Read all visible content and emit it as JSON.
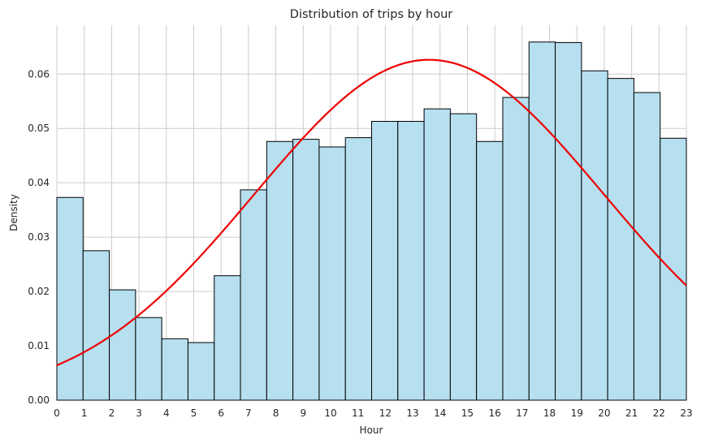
{
  "chart_data": {
    "type": "bar",
    "title": "Distribution of trips by hour",
    "xlabel": "Hour",
    "ylabel": "Density",
    "xlim": [
      0,
      23
    ],
    "ylim": [
      0,
      0.069
    ],
    "grid": true,
    "x_ticks": [
      "0",
      "1",
      "2",
      "3",
      "4",
      "5",
      "6",
      "7",
      "8",
      "9",
      "10",
      "11",
      "12",
      "13",
      "14",
      "15",
      "16",
      "17",
      "18",
      "19",
      "20",
      "21",
      "22",
      "23"
    ],
    "y_ticks": [
      "0.00",
      "0.01",
      "0.02",
      "0.03",
      "0.04",
      "0.05",
      "0.06"
    ],
    "bins": [
      {
        "start": 0.0,
        "end": 0.958,
        "value": 0.0373
      },
      {
        "start": 0.958,
        "end": 1.917,
        "value": 0.0275
      },
      {
        "start": 1.917,
        "end": 2.875,
        "value": 0.0203
      },
      {
        "start": 2.875,
        "end": 3.833,
        "value": 0.0152
      },
      {
        "start": 3.833,
        "end": 4.792,
        "value": 0.0113
      },
      {
        "start": 4.792,
        "end": 5.75,
        "value": 0.0106
      },
      {
        "start": 5.75,
        "end": 6.708,
        "value": 0.0229
      },
      {
        "start": 6.708,
        "end": 7.667,
        "value": 0.0387
      },
      {
        "start": 7.667,
        "end": 8.625,
        "value": 0.0476
      },
      {
        "start": 8.625,
        "end": 9.583,
        "value": 0.048
      },
      {
        "start": 9.583,
        "end": 10.542,
        "value": 0.0466
      },
      {
        "start": 10.542,
        "end": 11.5,
        "value": 0.0483
      },
      {
        "start": 11.5,
        "end": 12.458,
        "value": 0.0513
      },
      {
        "start": 12.458,
        "end": 13.417,
        "value": 0.0513
      },
      {
        "start": 13.417,
        "end": 14.375,
        "value": 0.0536
      },
      {
        "start": 14.375,
        "end": 15.333,
        "value": 0.0527
      },
      {
        "start": 15.333,
        "end": 16.292,
        "value": 0.0476
      },
      {
        "start": 16.292,
        "end": 17.25,
        "value": 0.0557
      },
      {
        "start": 17.25,
        "end": 18.208,
        "value": 0.0659
      },
      {
        "start": 18.208,
        "end": 19.167,
        "value": 0.0658
      },
      {
        "start": 19.167,
        "end": 20.125,
        "value": 0.0606
      },
      {
        "start": 20.125,
        "end": 21.083,
        "value": 0.0592
      },
      {
        "start": 21.083,
        "end": 22.042,
        "value": 0.0566
      },
      {
        "start": 22.042,
        "end": 23.0,
        "value": 0.0482
      }
    ],
    "curve": {
      "kind": "normal_pdf",
      "mean": 13.6,
      "std": 6.37,
      "color": "#ee0000"
    },
    "bar_color": "#b6dff0",
    "bar_edge_color": "#000000"
  }
}
